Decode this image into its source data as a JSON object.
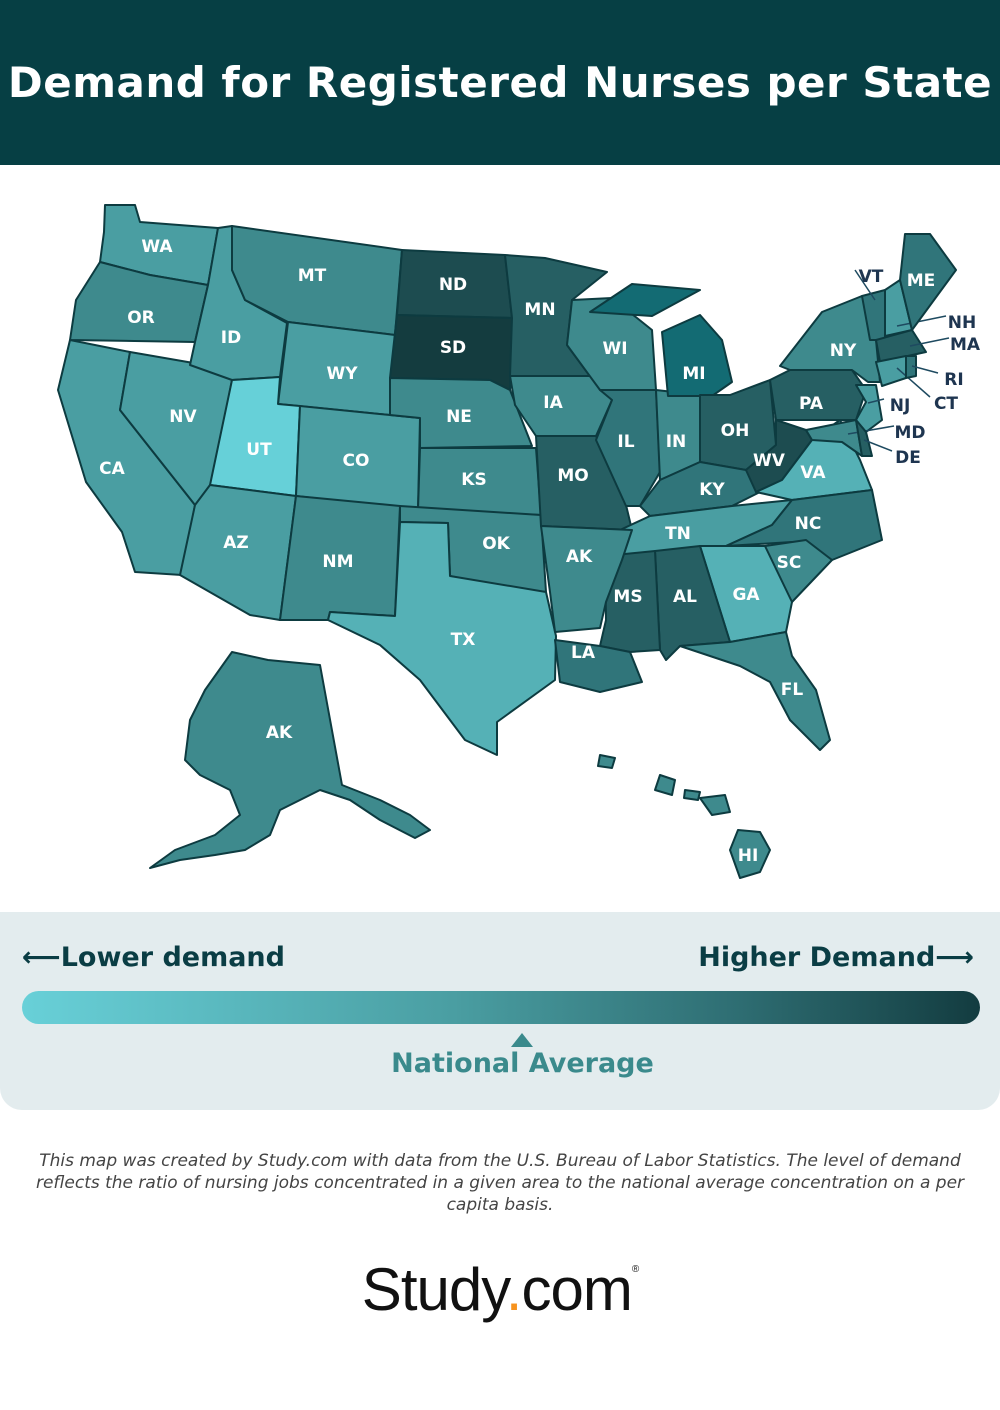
{
  "title": "Demand for Registered Nurses per State",
  "legend": {
    "lower_label": "Lower demand",
    "higher_label": "Higher Demand",
    "national_average_label": "National Average",
    "national_average_position": 0.52,
    "gradient_colors": [
      "#68d0d8",
      "#4a9ea2",
      "#2e6d72",
      "#133c40"
    ]
  },
  "footnote": "This map was created by Study.com with data from the U.S. Bureau of Labor Statistics. The level of demand reflects the ratio of nursing jobs concentrated in a given area to the national average concentration on a per capita basis.",
  "logo": {
    "text_main": "Study",
    "text_dot": ".",
    "text_end": "com",
    "mark": "®",
    "dot_color": "#f7931e"
  },
  "demand_colors": {
    "1": "#66d0d8",
    "2": "#55b1b6",
    "3": "#4a9ea2",
    "4": "#3e8a8d",
    "5": "#30757a",
    "6": "#265f63",
    "7": "#1d4c50",
    "8": "#143c3f",
    "mi": "#136b73"
  },
  "states": [
    {
      "abbr": "WA",
      "level": "3"
    },
    {
      "abbr": "OR",
      "level": "4"
    },
    {
      "abbr": "CA",
      "level": "3"
    },
    {
      "abbr": "NV",
      "level": "3"
    },
    {
      "abbr": "ID",
      "level": "3"
    },
    {
      "abbr": "MT",
      "level": "4"
    },
    {
      "abbr": "WY",
      "level": "3"
    },
    {
      "abbr": "UT",
      "level": "1"
    },
    {
      "abbr": "CO",
      "level": "3"
    },
    {
      "abbr": "AZ",
      "level": "3"
    },
    {
      "abbr": "NM",
      "level": "4"
    },
    {
      "abbr": "ND",
      "level": "7"
    },
    {
      "abbr": "SD",
      "level": "8"
    },
    {
      "abbr": "NE",
      "level": "4"
    },
    {
      "abbr": "KS",
      "level": "4"
    },
    {
      "abbr": "OK",
      "level": "4"
    },
    {
      "abbr": "TX",
      "level": "2"
    },
    {
      "abbr": "MN",
      "level": "6"
    },
    {
      "abbr": "IA",
      "level": "4"
    },
    {
      "abbr": "MO",
      "level": "6"
    },
    {
      "abbr": "WI",
      "level": "4"
    },
    {
      "abbr": "IL",
      "level": "5"
    },
    {
      "abbr": "IN",
      "level": "4"
    },
    {
      "abbr": "MI",
      "level": "mi"
    },
    {
      "abbr": "OH",
      "level": "6"
    },
    {
      "abbr": "KY",
      "level": "5"
    },
    {
      "abbr": "TN",
      "level": "3"
    },
    {
      "abbr": "WV",
      "level": "7"
    },
    {
      "abbr": "VA",
      "level": "2"
    },
    {
      "abbr": "NC",
      "level": "5"
    },
    {
      "abbr": "SC",
      "level": "4"
    },
    {
      "abbr": "GA",
      "level": "2"
    },
    {
      "abbr": "AL",
      "level": "6"
    },
    {
      "abbr": "MS",
      "level": "6"
    },
    {
      "abbr": "LA",
      "level": "5"
    },
    {
      "abbr": "AK",
      "level": "4"
    },
    {
      "abbr": "FL",
      "level": "4"
    },
    {
      "abbr": "PA",
      "level": "6"
    },
    {
      "abbr": "NY",
      "level": "4"
    },
    {
      "abbr": "NJ",
      "level": "3"
    },
    {
      "abbr": "MD",
      "level": "4"
    },
    {
      "abbr": "DE",
      "level": "6"
    },
    {
      "abbr": "VT",
      "level": "5"
    },
    {
      "abbr": "NH",
      "level": "3"
    },
    {
      "abbr": "ME",
      "level": "5"
    },
    {
      "abbr": "MA",
      "level": "6"
    },
    {
      "abbr": "CT",
      "level": "3"
    },
    {
      "abbr": "RI",
      "level": "5"
    },
    {
      "abbr": "AK",
      "level": "4",
      "alaska": true
    },
    {
      "abbr": "HI",
      "level": "4"
    }
  ]
}
